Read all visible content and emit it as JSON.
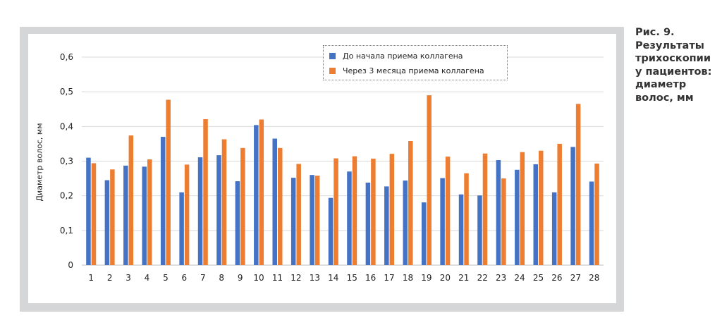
{
  "caption": {
    "lines": [
      "Рис. 9.",
      "Результаты",
      "трихоскопии",
      "у пациентов:",
      "диаметр",
      "волос, мм"
    ]
  },
  "chart_data": {
    "type": "bar",
    "title": "",
    "xlabel": "",
    "ylabel": "Диаметр волос, мм",
    "ylim": [
      0,
      0.6
    ],
    "yticks": [
      "0",
      "0,1",
      "0,2",
      "0,3",
      "0,4",
      "0,5",
      "0,6"
    ],
    "grid": true,
    "legend_position": "top-center",
    "categories": [
      "1",
      "2",
      "3",
      "4",
      "5",
      "6",
      "7",
      "8",
      "9",
      "10",
      "11",
      "12",
      "13",
      "14",
      "15",
      "16",
      "17",
      "18",
      "19",
      "20",
      "21",
      "22",
      "23",
      "24",
      "25",
      "26",
      "27",
      "28"
    ],
    "series": [
      {
        "name": "До начала приема коллагена",
        "color": "#4472c4",
        "values": [
          0.31,
          0.245,
          0.287,
          0.284,
          0.37,
          0.21,
          0.311,
          0.317,
          0.242,
          0.404,
          0.365,
          0.252,
          0.26,
          0.194,
          0.27,
          0.238,
          0.227,
          0.244,
          0.181,
          0.251,
          0.204,
          0.201,
          0.303,
          0.275,
          0.291,
          0.21,
          0.341,
          0.241
        ]
      },
      {
        "name": "Через 3 месяца приема коллагена",
        "color": "#ed7d31",
        "values": [
          0.294,
          0.276,
          0.374,
          0.305,
          0.477,
          0.29,
          0.421,
          0.363,
          0.338,
          0.42,
          0.338,
          0.292,
          0.258,
          0.308,
          0.314,
          0.307,
          0.321,
          0.358,
          0.49,
          0.313,
          0.265,
          0.322,
          0.25,
          0.326,
          0.33,
          0.35,
          0.465,
          0.293
        ]
      }
    ]
  }
}
